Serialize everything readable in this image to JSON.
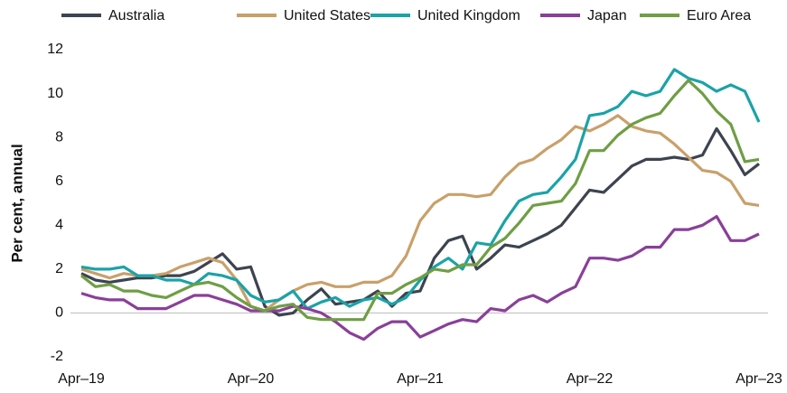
{
  "chart_data": {
    "type": "line",
    "ylabel": "Per cent, annual",
    "categories": [
      "Apr–19",
      null,
      null,
      null,
      null,
      null,
      null,
      null,
      null,
      null,
      null,
      null,
      "Apr–20",
      null,
      null,
      null,
      null,
      null,
      null,
      null,
      null,
      null,
      null,
      null,
      "Apr–21",
      null,
      null,
      null,
      null,
      null,
      null,
      null,
      null,
      null,
      null,
      null,
      "Apr–22",
      null,
      null,
      null,
      null,
      null,
      null,
      null,
      null,
      null,
      null,
      null,
      "Apr–23"
    ],
    "series": [
      {
        "name": "Australia",
        "color": "#3d4450",
        "values": [
          1.8,
          1.5,
          1.4,
          1.5,
          1.6,
          1.6,
          1.7,
          1.7,
          1.9,
          2.3,
          2.7,
          2.0,
          2.1,
          0.3,
          -0.1,
          0.0,
          0.6,
          1.1,
          0.4,
          0.5,
          0.6,
          1.0,
          0.3,
          0.9,
          1.0,
          2.5,
          3.3,
          3.5,
          2.0,
          2.5,
          3.1,
          3.0,
          3.3,
          3.6,
          4.0,
          4.8,
          5.6,
          5.5,
          6.1,
          6.7,
          7.0,
          7.0,
          7.1,
          7.0,
          7.2,
          8.4,
          7.4,
          6.3,
          6.8
        ]
      },
      {
        "name": "United States",
        "color": "#c9a06a",
        "values": [
          2.0,
          1.8,
          1.6,
          1.8,
          1.7,
          1.7,
          1.8,
          2.1,
          2.3,
          2.5,
          2.3,
          1.5,
          0.3,
          0.1,
          0.6,
          1.0,
          1.3,
          1.4,
          1.2,
          1.2,
          1.4,
          1.4,
          1.7,
          2.6,
          4.2,
          5.0,
          5.4,
          5.4,
          5.3,
          5.4,
          6.2,
          6.8,
          7.0,
          7.5,
          7.9,
          8.5,
          8.3,
          8.6,
          9.0,
          8.5,
          8.3,
          8.2,
          7.7,
          7.1,
          6.5,
          6.4,
          6.0,
          5.0,
          4.9
        ]
      },
      {
        "name": "United Kingdom",
        "color": "#1aa3a8",
        "values": [
          2.1,
          2.0,
          2.0,
          2.1,
          1.7,
          1.7,
          1.5,
          1.5,
          1.3,
          1.8,
          1.7,
          1.5,
          0.8,
          0.5,
          0.6,
          1.0,
          0.2,
          0.5,
          0.7,
          0.3,
          0.6,
          0.7,
          0.4,
          0.7,
          1.5,
          2.1,
          2.5,
          2.0,
          3.2,
          3.1,
          4.2,
          5.1,
          5.4,
          5.5,
          6.2,
          7.0,
          9.0,
          9.1,
          9.4,
          10.1,
          9.9,
          10.1,
          11.1,
          10.7,
          10.5,
          10.1,
          10.4,
          10.1,
          8.7
        ]
      },
      {
        "name": "Japan",
        "color": "#8a3f99",
        "values": [
          0.9,
          0.7,
          0.6,
          0.6,
          0.2,
          0.2,
          0.2,
          0.5,
          0.8,
          0.8,
          0.6,
          0.4,
          0.1,
          0.1,
          0.1,
          0.3,
          0.2,
          0.0,
          -0.4,
          -0.9,
          -1.2,
          -0.7,
          -0.4,
          -0.4,
          -1.1,
          -0.8,
          -0.5,
          -0.3,
          -0.4,
          0.2,
          0.1,
          0.6,
          0.8,
          0.5,
          0.9,
          1.2,
          2.5,
          2.5,
          2.4,
          2.6,
          3.0,
          3.0,
          3.8,
          3.8,
          4.0,
          4.4,
          3.3,
          3.3,
          3.6
        ]
      },
      {
        "name": "Euro Area",
        "color": "#6f9e44",
        "values": [
          1.7,
          1.2,
          1.3,
          1.0,
          1.0,
          0.8,
          0.7,
          1.0,
          1.3,
          1.4,
          1.2,
          0.7,
          0.3,
          0.1,
          0.3,
          0.4,
          -0.2,
          -0.3,
          -0.3,
          -0.3,
          -0.3,
          0.9,
          0.9,
          1.3,
          1.6,
          2.0,
          1.9,
          2.2,
          2.2,
          3.0,
          3.4,
          4.1,
          4.9,
          5.0,
          5.1,
          5.9,
          7.4,
          7.4,
          8.1,
          8.6,
          8.9,
          9.1,
          9.9,
          10.6,
          10.0,
          9.2,
          8.6,
          6.9,
          7.0
        ]
      }
    ],
    "ylim": [
      -2,
      12
    ],
    "yticks": [
      -2,
      0,
      2,
      4,
      6,
      8,
      10,
      12
    ],
    "grid": false,
    "legend": "top"
  }
}
